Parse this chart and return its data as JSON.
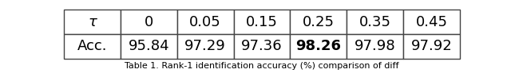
{
  "headers": [
    "τ",
    "0",
    "0.05",
    "0.15",
    "0.25",
    "0.35",
    "0.45"
  ],
  "row_label": "Acc.",
  "row_values": [
    "95.84",
    "97.29",
    "97.36",
    "98.26",
    "97.98",
    "97.92"
  ],
  "bold_col": 4,
  "table_bg": "#ffffff",
  "border_color": "#444444",
  "text_color": "#000000",
  "font_size": 13,
  "fig_width": 6.4,
  "fig_height": 1.02
}
